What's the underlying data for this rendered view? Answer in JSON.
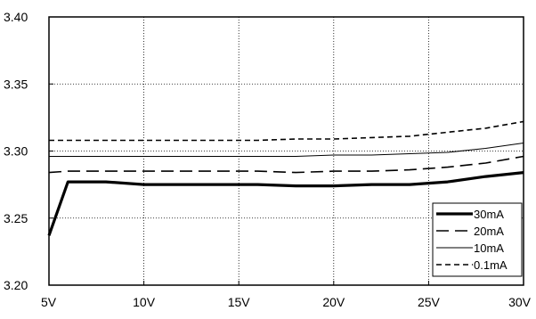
{
  "chart_data": {
    "type": "line",
    "title": "",
    "xlabel": "",
    "ylabel": "",
    "xlim": [
      5,
      30
    ],
    "ylim": [
      3.2,
      3.4
    ],
    "grid": true,
    "legend_position": "bottom-right",
    "x_ticks": [
      {
        "value": 5,
        "label": "5V"
      },
      {
        "value": 10,
        "label": "10V"
      },
      {
        "value": 15,
        "label": "15V"
      },
      {
        "value": 20,
        "label": "20V"
      },
      {
        "value": 25,
        "label": "25V"
      },
      {
        "value": 30,
        "label": "30V"
      }
    ],
    "y_ticks": [
      {
        "value": 3.2,
        "label": "3.20"
      },
      {
        "value": 3.25,
        "label": "3.25"
      },
      {
        "value": 3.3,
        "label": "3.30"
      },
      {
        "value": 3.35,
        "label": "3.35"
      },
      {
        "value": 3.4,
        "label": "3.40"
      }
    ],
    "series": [
      {
        "name": "30mA",
        "style": "thick-solid",
        "color": "#000000",
        "points": [
          [
            5,
            3.237
          ],
          [
            6,
            3.277
          ],
          [
            8,
            3.277
          ],
          [
            10,
            3.275
          ],
          [
            14,
            3.275
          ],
          [
            16,
            3.275
          ],
          [
            18,
            3.274
          ],
          [
            20,
            3.274
          ],
          [
            22,
            3.275
          ],
          [
            24,
            3.275
          ],
          [
            26,
            3.277
          ],
          [
            28,
            3.281
          ],
          [
            30,
            3.284
          ]
        ]
      },
      {
        "name": "20mA",
        "style": "long-dash",
        "color": "#000000",
        "points": [
          [
            5,
            3.284
          ],
          [
            6,
            3.285
          ],
          [
            8,
            3.285
          ],
          [
            10,
            3.285
          ],
          [
            14,
            3.285
          ],
          [
            16,
            3.285
          ],
          [
            18,
            3.284
          ],
          [
            20,
            3.285
          ],
          [
            22,
            3.285
          ],
          [
            24,
            3.286
          ],
          [
            26,
            3.288
          ],
          [
            28,
            3.291
          ],
          [
            30,
            3.296
          ]
        ]
      },
      {
        "name": "10mA",
        "style": "thin-solid",
        "color": "#000000",
        "points": [
          [
            5,
            3.296
          ],
          [
            8,
            3.296
          ],
          [
            10,
            3.296
          ],
          [
            12,
            3.296
          ],
          [
            14,
            3.296
          ],
          [
            16,
            3.296
          ],
          [
            18,
            3.296
          ],
          [
            20,
            3.297
          ],
          [
            22,
            3.297
          ],
          [
            24,
            3.298
          ],
          [
            26,
            3.299
          ],
          [
            28,
            3.302
          ],
          [
            30,
            3.306
          ]
        ]
      },
      {
        "name": "0.1mA",
        "style": "short-dash",
        "color": "#000000",
        "points": [
          [
            5,
            3.308
          ],
          [
            8,
            3.308
          ],
          [
            10,
            3.308
          ],
          [
            12,
            3.308
          ],
          [
            14,
            3.308
          ],
          [
            16,
            3.308
          ],
          [
            18,
            3.309
          ],
          [
            20,
            3.309
          ],
          [
            22,
            3.31
          ],
          [
            24,
            3.311
          ],
          [
            26,
            3.314
          ],
          [
            28,
            3.317
          ],
          [
            30,
            3.322
          ]
        ]
      }
    ]
  }
}
